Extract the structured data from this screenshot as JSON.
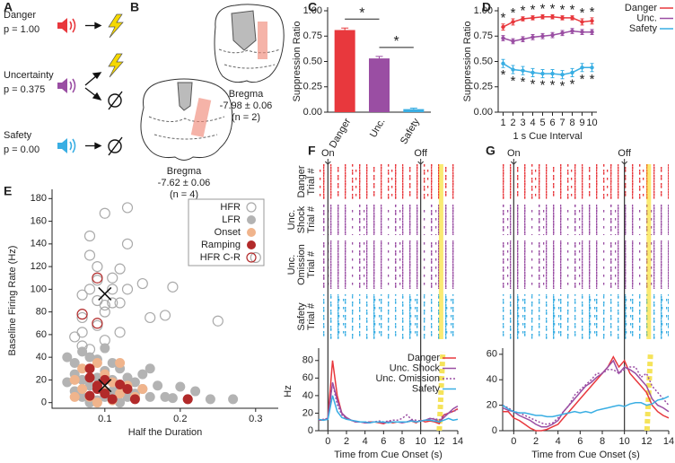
{
  "panel_a": {
    "letter": "A",
    "items": [
      {
        "name": "Danger",
        "p": "p = 1.00",
        "color": "#e8383d"
      },
      {
        "name": "Uncertainty",
        "p": "p = 0.375",
        "color": "#9a4ea3"
      },
      {
        "name": "Safety",
        "p": "p = 0.00",
        "color": "#39aee3"
      }
    ]
  },
  "panel_b": {
    "letter": "B",
    "sections": [
      {
        "label": "Bregma",
        "coord": "-7.62 ± 0.06",
        "n": "(n = 4)"
      },
      {
        "label": "Bregma",
        "coord": "-7.98 ± 0.06",
        "n": "(n = 2)"
      }
    ]
  },
  "chart_data": [
    {
      "type": "bar",
      "panel": "C",
      "ylabel": "Suppression Ratio",
      "categories": [
        "Danger",
        "Unc.",
        "Safety"
      ],
      "values": [
        0.81,
        0.53,
        0.03
      ],
      "errors": [
        0.02,
        0.02,
        0.01
      ],
      "colors": [
        "#e8383d",
        "#9a4ea3",
        "#39aee3"
      ],
      "ylim": [
        0,
        1
      ],
      "yticks": [
        {
          "value": 0,
          "label": "0.00"
        },
        {
          "value": 0.25,
          "label": "0.25"
        },
        {
          "value": 0.5,
          "label": "0.50"
        },
        {
          "value": 0.75,
          "label": "0.75"
        },
        {
          "value": 1,
          "label": "1.00"
        }
      ],
      "annotations": [
        {
          "text": "*",
          "color": "#e8383d",
          "between": [
            0,
            1
          ]
        },
        {
          "text": "*",
          "color": "#39aee3",
          "between": [
            1,
            2
          ]
        }
      ]
    },
    {
      "type": "line",
      "panel": "D",
      "ylabel": "Suppression Ratio",
      "xlabel": "1 s Cue Interval",
      "legend": true,
      "x": [
        1,
        2,
        3,
        4,
        5,
        6,
        7,
        8,
        9,
        10
      ],
      "xlim": [
        0.5,
        10.5
      ],
      "xticks": [
        1,
        2,
        3,
        4,
        5,
        6,
        7,
        8,
        9,
        10
      ],
      "ylim": [
        0,
        1
      ],
      "yticks": [
        {
          "value": 0,
          "label": "0.00"
        },
        {
          "value": 0.25,
          "label": "0.25"
        },
        {
          "value": 0.5,
          "label": "0.50"
        },
        {
          "value": 0.75,
          "label": "0.75"
        },
        {
          "value": 1,
          "label": "1.00"
        }
      ],
      "series": [
        {
          "name": "Danger",
          "color": "#e8383d",
          "marker_label": "*",
          "values": [
            0.84,
            0.89,
            0.92,
            0.93,
            0.94,
            0.94,
            0.93,
            0.93,
            0.89,
            0.9
          ],
          "errors": [
            0.03,
            0.03,
            0.02,
            0.02,
            0.02,
            0.02,
            0.02,
            0.02,
            0.03,
            0.03
          ]
        },
        {
          "name": "Unc.",
          "color": "#9a4ea3",
          "values": [
            0.73,
            0.7,
            0.72,
            0.74,
            0.75,
            0.76,
            0.78,
            0.8,
            0.79,
            0.79
          ],
          "errors": [
            0.025,
            0.025,
            0.025,
            0.025,
            0.025,
            0.025,
            0.025,
            0.025,
            0.025,
            0.025
          ]
        },
        {
          "name": "Safety",
          "color": "#39aee3",
          "marker_label": "*",
          "values": [
            0.48,
            0.42,
            0.41,
            0.39,
            0.38,
            0.38,
            0.37,
            0.39,
            0.44,
            0.44
          ],
          "errors": [
            0.04,
            0.04,
            0.04,
            0.04,
            0.04,
            0.04,
            0.04,
            0.04,
            0.04,
            0.04
          ]
        }
      ]
    },
    {
      "type": "scatter",
      "panel": "E",
      "xlabel": "Half the Duration",
      "ylabel": "Baseline Firing Rate (Hz)",
      "xlim": [
        0.03,
        0.33
      ],
      "xticks": [
        0.1,
        0.2,
        0.3
      ],
      "ylim": [
        -5,
        185
      ],
      "yticks": [
        0,
        20,
        40,
        60,
        80,
        100,
        120,
        140,
        160,
        180
      ],
      "means": {
        "x": [
          0.1,
          0.1
        ],
        "y": [
          96,
          15
        ]
      },
      "series": [
        {
          "name": "HFR",
          "color": "#aaaaaa",
          "filled": false,
          "x": [
            0.06,
            0.07,
            0.07,
            0.07,
            0.08,
            0.08,
            0.08,
            0.09,
            0.09,
            0.09,
            0.1,
            0.1,
            0.1,
            0.11,
            0.11,
            0.11,
            0.12,
            0.12,
            0.13,
            0.13,
            0.13,
            0.15,
            0.16,
            0.18,
            0.19,
            0.25,
            0.3,
            0.08,
            0.1,
            0.07,
            0.12,
            0.09
          ],
          "y": [
            58,
            62,
            75,
            95,
            100,
            147,
            130,
            120,
            108,
            90,
            167,
            86,
            80,
            88,
            100,
            110,
            118,
            88,
            172,
            140,
            100,
            105,
            75,
            77,
            102,
            72,
            128,
            47,
            55,
            50,
            62,
            68
          ]
        },
        {
          "name": "LFR",
          "color": "#b3b3b3",
          "filled": true,
          "x": [
            0.05,
            0.06,
            0.06,
            0.06,
            0.07,
            0.07,
            0.07,
            0.08,
            0.08,
            0.08,
            0.08,
            0.09,
            0.09,
            0.09,
            0.1,
            0.1,
            0.1,
            0.11,
            0.11,
            0.11,
            0.12,
            0.12,
            0.12,
            0.13,
            0.13,
            0.14,
            0.15,
            0.15,
            0.16,
            0.17,
            0.19,
            0.2,
            0.22,
            0.24,
            0.27,
            0.21,
            0.05,
            0.14,
            0.16,
            0.18
          ],
          "y": [
            18,
            10,
            25,
            35,
            5,
            20,
            45,
            0,
            15,
            30,
            40,
            2,
            22,
            38,
            5,
            28,
            48,
            10,
            20,
            35,
            0,
            15,
            30,
            5,
            22,
            8,
            12,
            25,
            5,
            15,
            4,
            14,
            10,
            3,
            3,
            3,
            40,
            18,
            30,
            5
          ]
        },
        {
          "name": "Onset",
          "color": "#f0b48c",
          "filled": true,
          "x": [
            0.06,
            0.07,
            0.07,
            0.08,
            0.08,
            0.09,
            0.09,
            0.1,
            0.1,
            0.11,
            0.11,
            0.12,
            0.13,
            0.14,
            0.15,
            0.12,
            0.09,
            0.06
          ],
          "y": [
            20,
            12,
            30,
            5,
            22,
            15,
            35,
            10,
            25,
            2,
            18,
            8,
            15,
            5,
            12,
            35,
            0,
            5
          ]
        },
        {
          "name": "Ramping",
          "color": "#b22a2a",
          "filled": true,
          "x": [
            0.08,
            0.08,
            0.09,
            0.09,
            0.1,
            0.1,
            0.11,
            0.12,
            0.13,
            0.14,
            0.21,
            0.08
          ],
          "y": [
            30,
            22,
            15,
            12,
            8,
            20,
            3,
            16,
            12,
            3,
            3,
            6
          ]
        },
        {
          "name": "HFR C-R",
          "color": "#b22a2a",
          "filled": false,
          "x": [
            0.07,
            0.09,
            0.09
          ],
          "y": [
            78,
            110,
            70
          ]
        }
      ]
    },
    {
      "type": "line",
      "panel": "F",
      "xlabel": "Time from Cue Onset (s)",
      "ylabel": "Hz",
      "legend": true,
      "on_label": "On",
      "off_label": "Off",
      "on": 0,
      "off": 10,
      "shock": 12.2,
      "trial_label": "Trial #",
      "raster_labels": [
        [
          "Danger"
        ],
        [
          "Unc.",
          "Shock"
        ],
        [
          "Unc.",
          "Omission"
        ],
        [
          "Safety"
        ]
      ],
      "x": [
        -1,
        -0.5,
        0,
        0.5,
        1,
        1.5,
        2,
        2.5,
        3,
        3.5,
        4,
        4.5,
        5,
        5.5,
        6,
        6.5,
        7,
        7.5,
        8,
        8.5,
        9,
        9.5,
        10,
        10.5,
        11,
        11.5,
        12,
        12.5,
        13,
        13.5,
        14
      ],
      "xlim": [
        -1,
        14
      ],
      "xticks": [
        0,
        2,
        4,
        6,
        8,
        10,
        12,
        14
      ],
      "ylim": [
        0,
        90
      ],
      "yticks": [
        0,
        20,
        40,
        60,
        80
      ],
      "series": [
        {
          "name": "Danger",
          "color": "#e8383d",
          "values": [
            12,
            12,
            14,
            80,
            40,
            20,
            14,
            12,
            10,
            10,
            9,
            10,
            10,
            9,
            8,
            10,
            9,
            10,
            10,
            10,
            11,
            9,
            12,
            10,
            11,
            10,
            8,
            18,
            20,
            22,
            25
          ]
        },
        {
          "name": "Unc. Shock",
          "color": "#9a4ea3",
          "values": [
            13,
            12,
            14,
            55,
            35,
            20,
            15,
            12,
            10,
            10,
            9,
            9,
            10,
            10,
            9,
            10,
            10,
            10,
            9,
            10,
            12,
            10,
            11,
            12,
            14,
            13,
            10,
            15,
            20,
            25,
            28
          ]
        },
        {
          "name": "Unc. Omission",
          "color": "#9a4ea3",
          "dash": true,
          "values": [
            12,
            13,
            14,
            55,
            30,
            18,
            14,
            12,
            10,
            10,
            10,
            10,
            10,
            11,
            10,
            11,
            12,
            12,
            14,
            18,
            13,
            12,
            11,
            12,
            13,
            14,
            12,
            18,
            20,
            22,
            24
          ]
        },
        {
          "name": "Safety",
          "color": "#39aee3",
          "values": [
            13,
            12,
            13,
            40,
            22,
            15,
            13,
            12,
            11,
            10,
            10,
            9,
            10,
            10,
            10,
            9,
            10,
            10,
            10,
            10,
            11,
            10,
            11,
            12,
            12,
            11,
            10,
            12,
            14,
            12,
            13
          ]
        }
      ]
    },
    {
      "type": "line",
      "panel": "G",
      "xlabel": "Time from Cue Onset (s)",
      "legend": false,
      "on_label": "On",
      "off_label": "Off",
      "on": 0,
      "off": 10,
      "shock": 12.2,
      "x": [
        -1,
        -0.5,
        0,
        0.5,
        1,
        1.5,
        2,
        2.5,
        3,
        3.5,
        4,
        4.5,
        5,
        5.5,
        6,
        6.5,
        7,
        7.5,
        8,
        8.5,
        9,
        9.5,
        10,
        10.5,
        11,
        11.5,
        12,
        12.5,
        13,
        13.5,
        14
      ],
      "xlim": [
        -1,
        14
      ],
      "xticks": [
        0,
        2,
        4,
        6,
        8,
        10,
        12,
        14
      ],
      "ylim": [
        0,
        62
      ],
      "yticks": [
        0,
        20,
        40,
        60
      ],
      "series": [
        {
          "name": "Danger",
          "color": "#e8383d",
          "values": [
            15,
            15,
            10,
            8,
            5,
            2,
            0,
            0,
            1,
            3,
            5,
            10,
            15,
            20,
            25,
            30,
            35,
            40,
            45,
            50,
            58,
            50,
            55,
            45,
            40,
            35,
            30,
            20,
            15,
            12,
            10
          ]
        },
        {
          "name": "Unc. Shock",
          "color": "#9a4ea3",
          "values": [
            18,
            16,
            15,
            12,
            10,
            8,
            5,
            3,
            3,
            5,
            8,
            15,
            20,
            25,
            30,
            35,
            38,
            42,
            45,
            50,
            55,
            45,
            50,
            48,
            45,
            40,
            35,
            25,
            20,
            18,
            15
          ]
        },
        {
          "name": "Unc. Omission",
          "color": "#9a4ea3",
          "dash": true,
          "values": [
            20,
            18,
            15,
            14,
            12,
            10,
            8,
            6,
            5,
            6,
            10,
            15,
            20,
            28,
            32,
            36,
            40,
            45,
            45,
            48,
            48,
            45,
            48,
            50,
            50,
            42,
            45,
            35,
            30,
            25,
            20
          ]
        },
        {
          "name": "Safety",
          "color": "#39aee3",
          "values": [
            20,
            17,
            15,
            14,
            14,
            13,
            12,
            12,
            11,
            11,
            12,
            13,
            14,
            15,
            14,
            15,
            14,
            16,
            17,
            18,
            19,
            20,
            19,
            21,
            22,
            22,
            20,
            21,
            24,
            25,
            27
          ]
        }
      ]
    }
  ]
}
